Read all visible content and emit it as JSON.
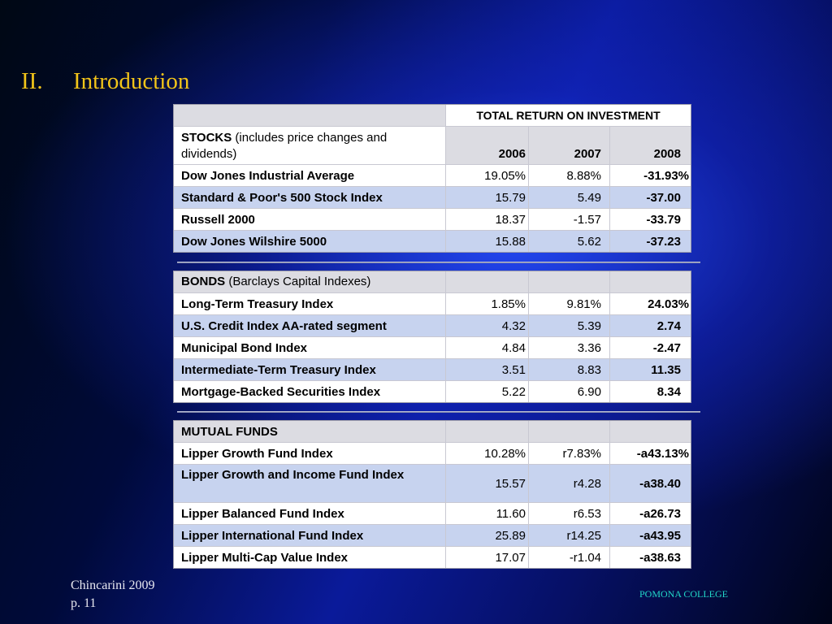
{
  "slide": {
    "title_number": "II.",
    "title_text": "Introduction"
  },
  "header": {
    "total_return": "TOTAL RETURN ON INVESTMENT",
    "stocks_label": "STOCKS",
    "stocks_note": " (includes price changes and dividends)",
    "years": [
      "2006",
      "2007",
      "2008"
    ]
  },
  "stocks": [
    {
      "name": "Dow Jones Industrial Average",
      "y2006": "19.05%",
      "y2007": "8.88%",
      "y2008": "-31.93%"
    },
    {
      "name": "Standard & Poor's 500 Stock Index",
      "y2006": "15.79",
      "y2007": "5.49",
      "y2008": "-37.00"
    },
    {
      "name": "Russell 2000",
      "y2006": "18.37",
      "y2007": "-1.57",
      "y2008": "-33.79"
    },
    {
      "name": "Dow Jones Wilshire 5000",
      "y2006": "15.88",
      "y2007": "5.62",
      "y2008": "-37.23"
    }
  ],
  "bonds_header": {
    "label": "BONDS",
    "note": " (Barclays Capital Indexes)"
  },
  "bonds": [
    {
      "name": "Long-Term Treasury Index",
      "y2006": "1.85%",
      "y2007": "9.81%",
      "y2008": "24.03%"
    },
    {
      "name": "U.S. Credit Index AA-rated segment",
      "y2006": "4.32",
      "y2007": "5.39",
      "y2008": "2.74"
    },
    {
      "name": "Municipal Bond Index",
      "y2006": "4.84",
      "y2007": "3.36",
      "y2008": "-2.47"
    },
    {
      "name": "Intermediate-Term Treasury Index",
      "y2006": "3.51",
      "y2007": "8.83",
      "y2008": "11.35"
    },
    {
      "name": "Mortgage-Backed Securities Index",
      "y2006": "5.22",
      "y2007": "6.90",
      "y2008": "8.34"
    }
  ],
  "funds_header": {
    "label": "MUTUAL FUNDS"
  },
  "funds": [
    {
      "name": "Lipper Growth Fund Index",
      "y2006": "10.28%",
      "y2007": "r7.83%",
      "y2008": "-a43.13%"
    },
    {
      "name": "Lipper Growth and Income Fund Index",
      "y2006": "15.57",
      "y2007": "r4.28",
      "y2008": "-a38.40"
    },
    {
      "name": "Lipper Balanced Fund Index",
      "y2006": "11.60",
      "y2007": "r6.53",
      "y2008": "-a26.73"
    },
    {
      "name": "Lipper International Fund Index",
      "y2006": "25.89",
      "y2007": "r14.25",
      "y2008": "-a43.95"
    },
    {
      "name": "Lipper Multi-Cap Value Index",
      "y2006": "17.07",
      "y2007": "-r1.04",
      "y2008": "-a38.63"
    }
  ],
  "footer": {
    "author": "Chincarini 2009",
    "page": "p. 11",
    "institution": "POMONA COLLEGE"
  }
}
